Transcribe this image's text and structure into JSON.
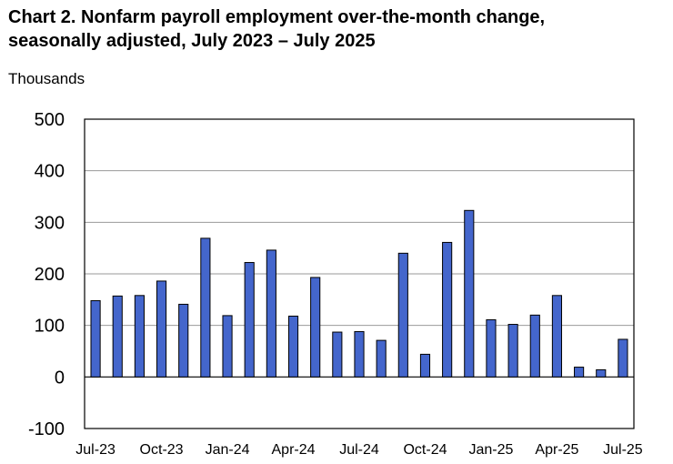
{
  "chart_data": {
    "type": "bar",
    "title_line1": "Chart 2. Nonfarm payroll employment over-the-month change,",
    "title_line2": "seasonally adjusted, July 2023 – July 2025",
    "ylabel": "Thousands",
    "ylim": [
      -100,
      500
    ],
    "yticks": [
      -100,
      0,
      100,
      200,
      300,
      400,
      500
    ],
    "grid": true,
    "bar_color": "#4466cc",
    "categories": [
      "Jul-23",
      "Aug-23",
      "Sep-23",
      "Oct-23",
      "Nov-23",
      "Dec-23",
      "Jan-24",
      "Feb-24",
      "Mar-24",
      "Apr-24",
      "May-24",
      "Jun-24",
      "Jul-24",
      "Aug-24",
      "Sep-24",
      "Oct-24",
      "Nov-24",
      "Dec-24",
      "Jan-25",
      "Feb-25",
      "Mar-25",
      "Apr-25",
      "May-25",
      "Jun-25",
      "Jul-25"
    ],
    "x_tick_labels": [
      "Jul-23",
      "Oct-23",
      "Jan-24",
      "Apr-24",
      "Jul-24",
      "Oct-24",
      "Jan-25",
      "Apr-25",
      "Jul-25"
    ],
    "values": [
      148,
      157,
      158,
      186,
      141,
      269,
      119,
      222,
      246,
      118,
      193,
      87,
      88,
      71,
      240,
      44,
      261,
      323,
      111,
      102,
      120,
      158,
      19,
      14,
      73
    ]
  }
}
